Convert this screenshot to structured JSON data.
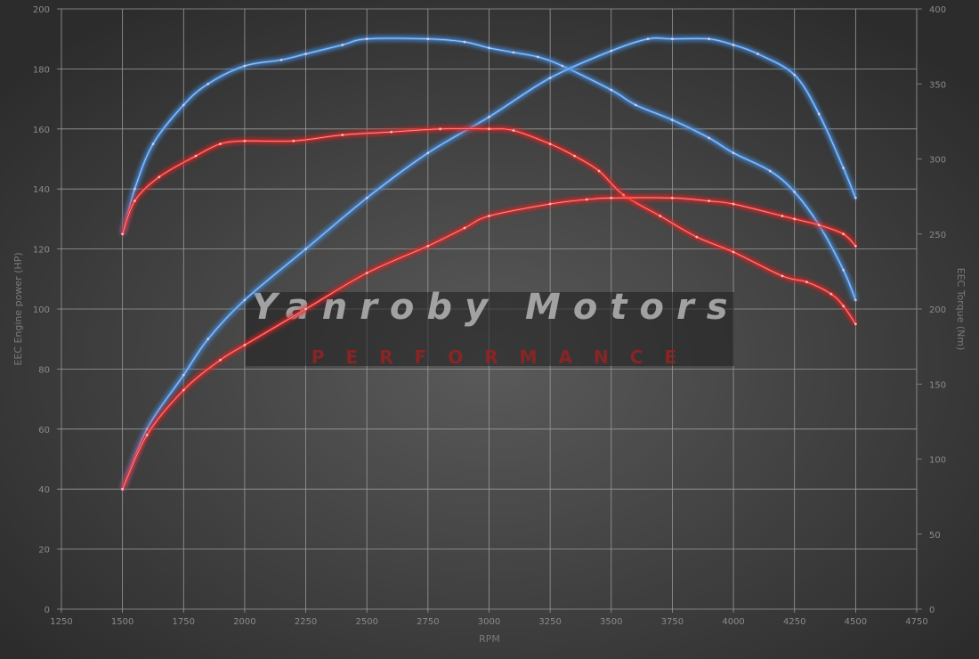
{
  "chart_data": {
    "type": "line",
    "title": "",
    "xlabel": "RPM",
    "ylabel_left": "EEC Engine power (HP)",
    "ylabel_right": "EEC Torque (Nm)",
    "xlim": [
      1250,
      4750
    ],
    "ylim_left": [
      0,
      200
    ],
    "ylim_right": [
      0,
      400
    ],
    "x_ticks": [
      1250,
      1500,
      1750,
      2000,
      2250,
      2500,
      2750,
      3000,
      3250,
      3500,
      3750,
      4000,
      4250,
      4500,
      4750
    ],
    "y_ticks_left": [
      0,
      20,
      40,
      60,
      80,
      100,
      120,
      140,
      160,
      180,
      200
    ],
    "y_ticks_right": [
      0,
      50,
      100,
      150,
      200,
      250,
      300,
      350,
      400
    ],
    "grid": true,
    "legend": "none",
    "watermark": {
      "line1": "Yanroby Motors",
      "line2": "PERFORMANCE"
    },
    "series": [
      {
        "axis": "right",
        "color": "#4a8fe0",
        "x": [
          1500,
          1550,
          1625,
          1750,
          1850,
          2000,
          2150,
          2250,
          2400,
          2500,
          2750,
          2900,
          3000,
          3100,
          3200,
          3300,
          3500,
          3600,
          3750,
          3900,
          4000,
          4150,
          4250,
          4350,
          4450,
          4500
        ],
        "y": [
          250,
          280,
          310,
          336,
          350,
          362,
          366,
          370,
          376,
          380,
          380,
          378,
          374,
          371,
          368,
          362,
          346,
          336,
          326,
          314,
          304,
          292,
          278,
          256,
          226,
          206
        ]
      },
      {
        "axis": "left",
        "color": "#4a8fe0",
        "x": [
          1500,
          1600,
          1750,
          1850,
          2000,
          2250,
          2500,
          2750,
          3000,
          3250,
          3500,
          3650,
          3750,
          3900,
          4000,
          4100,
          4250,
          4350,
          4450,
          4500
        ],
        "y": [
          40,
          60,
          78,
          90,
          103,
          120,
          137,
          152,
          164,
          177,
          186,
          190,
          190,
          190,
          188,
          185,
          178,
          165,
          147,
          137
        ]
      },
      {
        "axis": "right",
        "color": "#e02a2a",
        "x": [
          1500,
          1550,
          1650,
          1800,
          1900,
          2000,
          2200,
          2400,
          2600,
          2800,
          3000,
          3100,
          3250,
          3350,
          3450,
          3550,
          3700,
          3850,
          4000,
          4200,
          4300,
          4400,
          4450,
          4500
        ],
        "y": [
          250,
          272,
          288,
          302,
          310,
          312,
          312,
          316,
          318,
          320,
          320,
          319,
          310,
          302,
          292,
          276,
          262,
          248,
          238,
          222,
          218,
          210,
          202,
          190
        ]
      },
      {
        "axis": "left",
        "color": "#e02a2a",
        "x": [
          1500,
          1600,
          1750,
          1900,
          2000,
          2250,
          2500,
          2750,
          2900,
          3000,
          3250,
          3400,
          3500,
          3750,
          3900,
          4000,
          4200,
          4250,
          4350,
          4450,
          4500
        ],
        "y": [
          40,
          58,
          73,
          83,
          88,
          100,
          112,
          121,
          127,
          131,
          135,
          136.5,
          137,
          137,
          136,
          135,
          131,
          130,
          128,
          125,
          121
        ]
      }
    ]
  }
}
